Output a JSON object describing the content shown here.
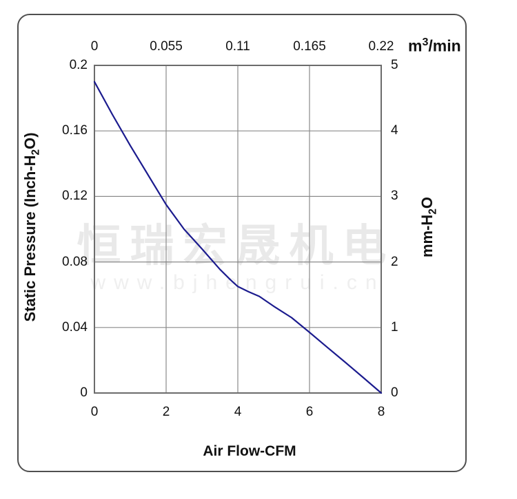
{
  "watermark": {
    "company_text": "恒瑞宏晟机电",
    "url_text": "www.bjhengrui.cn"
  },
  "colors": {
    "curve": "#1b1b8e",
    "gridline": "#8a8a8a",
    "plot_border": "#6b6b6b",
    "frame_border": "#4f4f4f",
    "text": "#111111",
    "watermark_cn": "#e9e9e9",
    "watermark_url": "#efefef"
  },
  "chart_data": {
    "type": "line",
    "title": "",
    "grid": true,
    "legend": "none",
    "x_bottom": {
      "label": "Air Flow-CFM",
      "ticks": [
        "0",
        "2",
        "4",
        "6",
        "8"
      ],
      "range": [
        0,
        8
      ]
    },
    "x_top": {
      "label_parts": {
        "pre": "m",
        "sup": "3",
        "post": "/min"
      },
      "ticks": [
        "0",
        "0.055",
        "0.11",
        "0.165",
        "0.22"
      ],
      "range": [
        0,
        0.22
      ]
    },
    "y_left": {
      "label_parts": {
        "pre": "Static Pressure (Inch-H",
        "sub": "2",
        "post": "O)"
      },
      "ticks": [
        "0.2",
        "0.16",
        "0.12",
        "0.08",
        "0.04",
        "0"
      ],
      "range": [
        0,
        0.2
      ]
    },
    "y_right": {
      "label_parts": {
        "pre": "mm-H",
        "sub": "2",
        "post": "O"
      },
      "ticks": [
        "5",
        "4",
        "3",
        "2",
        "1",
        "0"
      ],
      "range": [
        0,
        5
      ]
    },
    "series": [
      {
        "name": "static-pressure-vs-airflow",
        "x_unit": "CFM",
        "y_unit": "Inch-H2O",
        "points": [
          [
            0,
            0.19
          ],
          [
            0.5,
            0.17
          ],
          [
            1.0,
            0.151
          ],
          [
            1.5,
            0.133
          ],
          [
            2.0,
            0.115
          ],
          [
            2.5,
            0.1
          ],
          [
            3.0,
            0.088
          ],
          [
            3.5,
            0.0755
          ],
          [
            3.8,
            0.069
          ],
          [
            4.0,
            0.065
          ],
          [
            4.3,
            0.0618
          ],
          [
            4.6,
            0.059
          ],
          [
            5.0,
            0.053
          ],
          [
            5.5,
            0.046
          ],
          [
            6.0,
            0.037
          ],
          [
            6.5,
            0.0278
          ],
          [
            7.0,
            0.0187
          ],
          [
            7.5,
            0.0094
          ],
          [
            8.0,
            0
          ]
        ]
      }
    ]
  }
}
